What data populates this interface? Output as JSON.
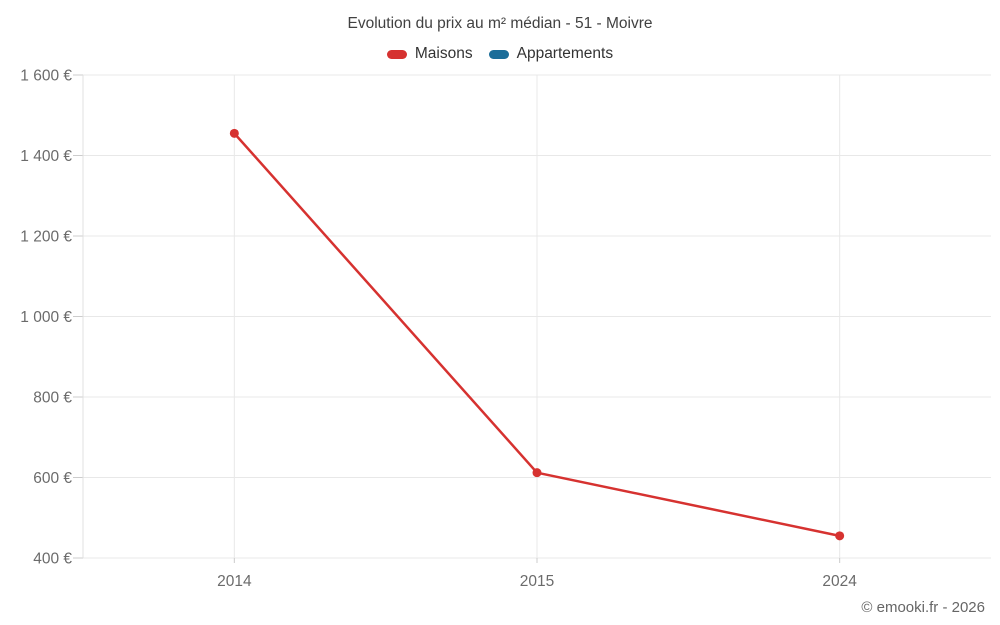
{
  "header": {
    "title": "Evolution du prix au m² médian - 51 - Moivre"
  },
  "legend": {
    "items": [
      {
        "label": "Maisons",
        "color": "#d63230"
      },
      {
        "label": "Appartements",
        "color": "#1b6d99"
      }
    ]
  },
  "footer": {
    "copyright": "© emooki.fr - 2026"
  },
  "colors": {
    "maisons_red": "#d63230",
    "appartements_blue": "#1b6d99",
    "gridline": "#e8e8e8",
    "axis_line": "#e0e0e0",
    "tick": "#cccccc",
    "axis_label": "#6b6b6b",
    "title_text": "#414141",
    "background": "#ffffff"
  },
  "chart_data": {
    "type": "line",
    "title": "Evolution du prix au m² médian - 51 - Moivre",
    "categories": [
      "2014",
      "2015",
      "2024"
    ],
    "series": [
      {
        "name": "Maisons",
        "color": "#d63230",
        "values": [
          1455,
          612,
          455
        ]
      },
      {
        "name": "Appartements",
        "color": "#1b6d99",
        "values": [
          null,
          null,
          null
        ]
      }
    ],
    "xlabel": "",
    "ylabel": "",
    "ylim": [
      400,
      1600
    ],
    "ytick_step": 200,
    "yticks": [
      400,
      600,
      800,
      1000,
      1200,
      1400,
      1600
    ],
    "ytick_labels": [
      "400 €",
      "600 €",
      "800 €",
      "1 000 €",
      "1 200 €",
      "1 400 €",
      "1 600 €"
    ],
    "grid": true,
    "legend_position": "top",
    "marker_radius": 4.5,
    "line_width": 2.5
  }
}
